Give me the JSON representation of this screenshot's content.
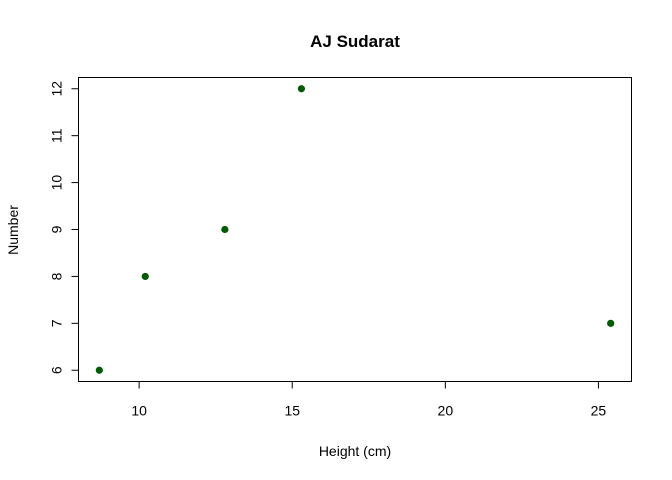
{
  "chart_data": {
    "type": "scatter",
    "title": "AJ Sudarat",
    "xlabel": "Height (cm)",
    "ylabel": "Number",
    "x": [
      8.7,
      10.2,
      12.8,
      15.3,
      25.4
    ],
    "y": [
      6,
      8,
      9,
      12,
      7
    ],
    "xlim": [
      8.02,
      26.08
    ],
    "ylim": [
      5.76,
      12.24
    ],
    "xticks": [
      10,
      15,
      20,
      25
    ],
    "yticks": [
      6,
      7,
      8,
      9,
      10,
      11,
      12
    ],
    "point_color": "#005a00",
    "grid": false,
    "legend": "none"
  }
}
